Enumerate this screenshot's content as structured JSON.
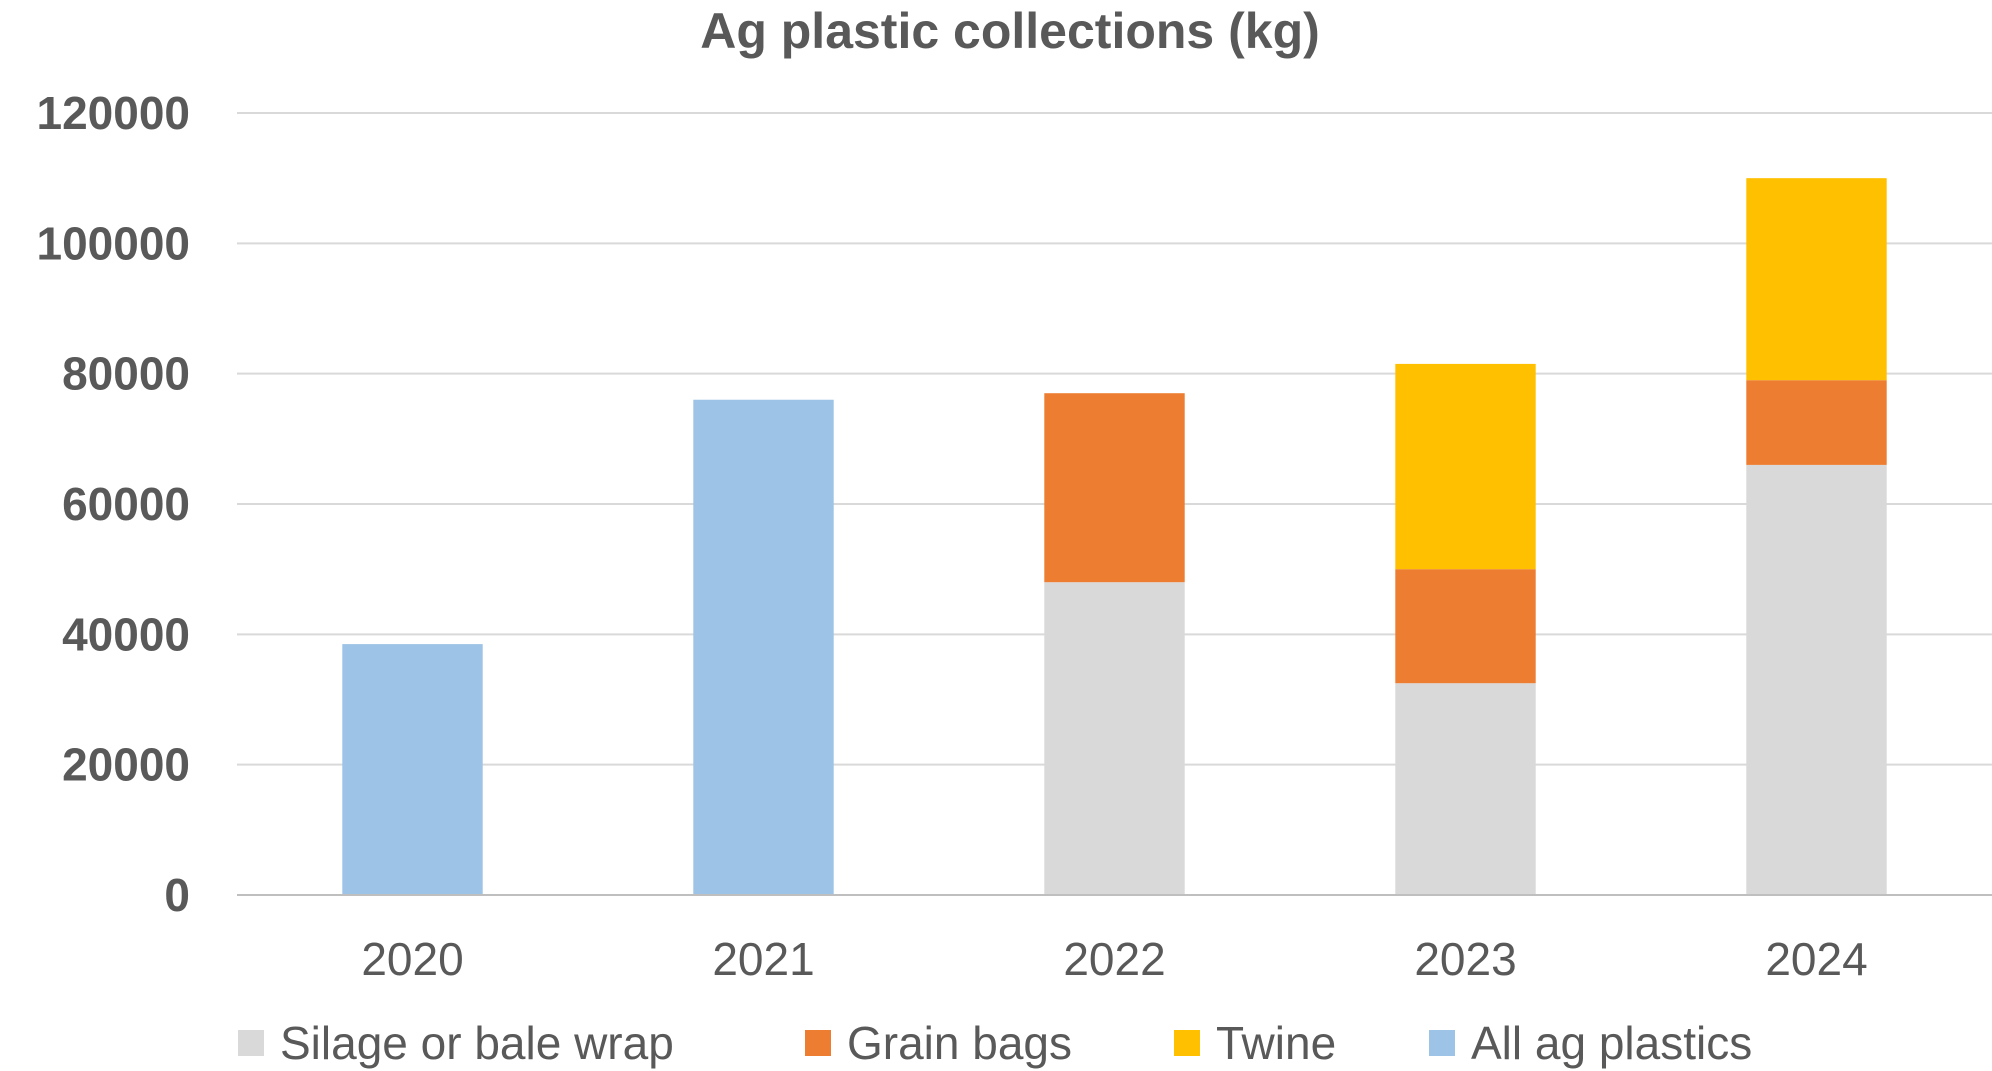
{
  "chart_data": {
    "type": "bar",
    "stacked": true,
    "title": "Ag plastic collections (kg)",
    "xlabel": "",
    "ylabel": "",
    "categories": [
      "2020",
      "2021",
      "2022",
      "2023",
      "2024"
    ],
    "ylim": [
      0,
      120000
    ],
    "yticks": [
      0,
      20000,
      40000,
      60000,
      80000,
      100000,
      120000
    ],
    "grid": true,
    "legend_position": "bottom",
    "series": [
      {
        "name": "Silage or bale wrap",
        "color": "#d9d9d9",
        "values": [
          0,
          0,
          48000,
          32500,
          66000
        ]
      },
      {
        "name": "Grain bags",
        "color": "#ed7d31",
        "values": [
          0,
          0,
          29000,
          17500,
          13000
        ]
      },
      {
        "name": "Twine",
        "color": "#ffc000",
        "values": [
          0,
          0,
          0,
          31500,
          31000
        ]
      },
      {
        "name": "All ag plastics",
        "color": "#9dc3e6",
        "values": [
          38500,
          76000,
          0,
          0,
          0
        ]
      }
    ]
  }
}
